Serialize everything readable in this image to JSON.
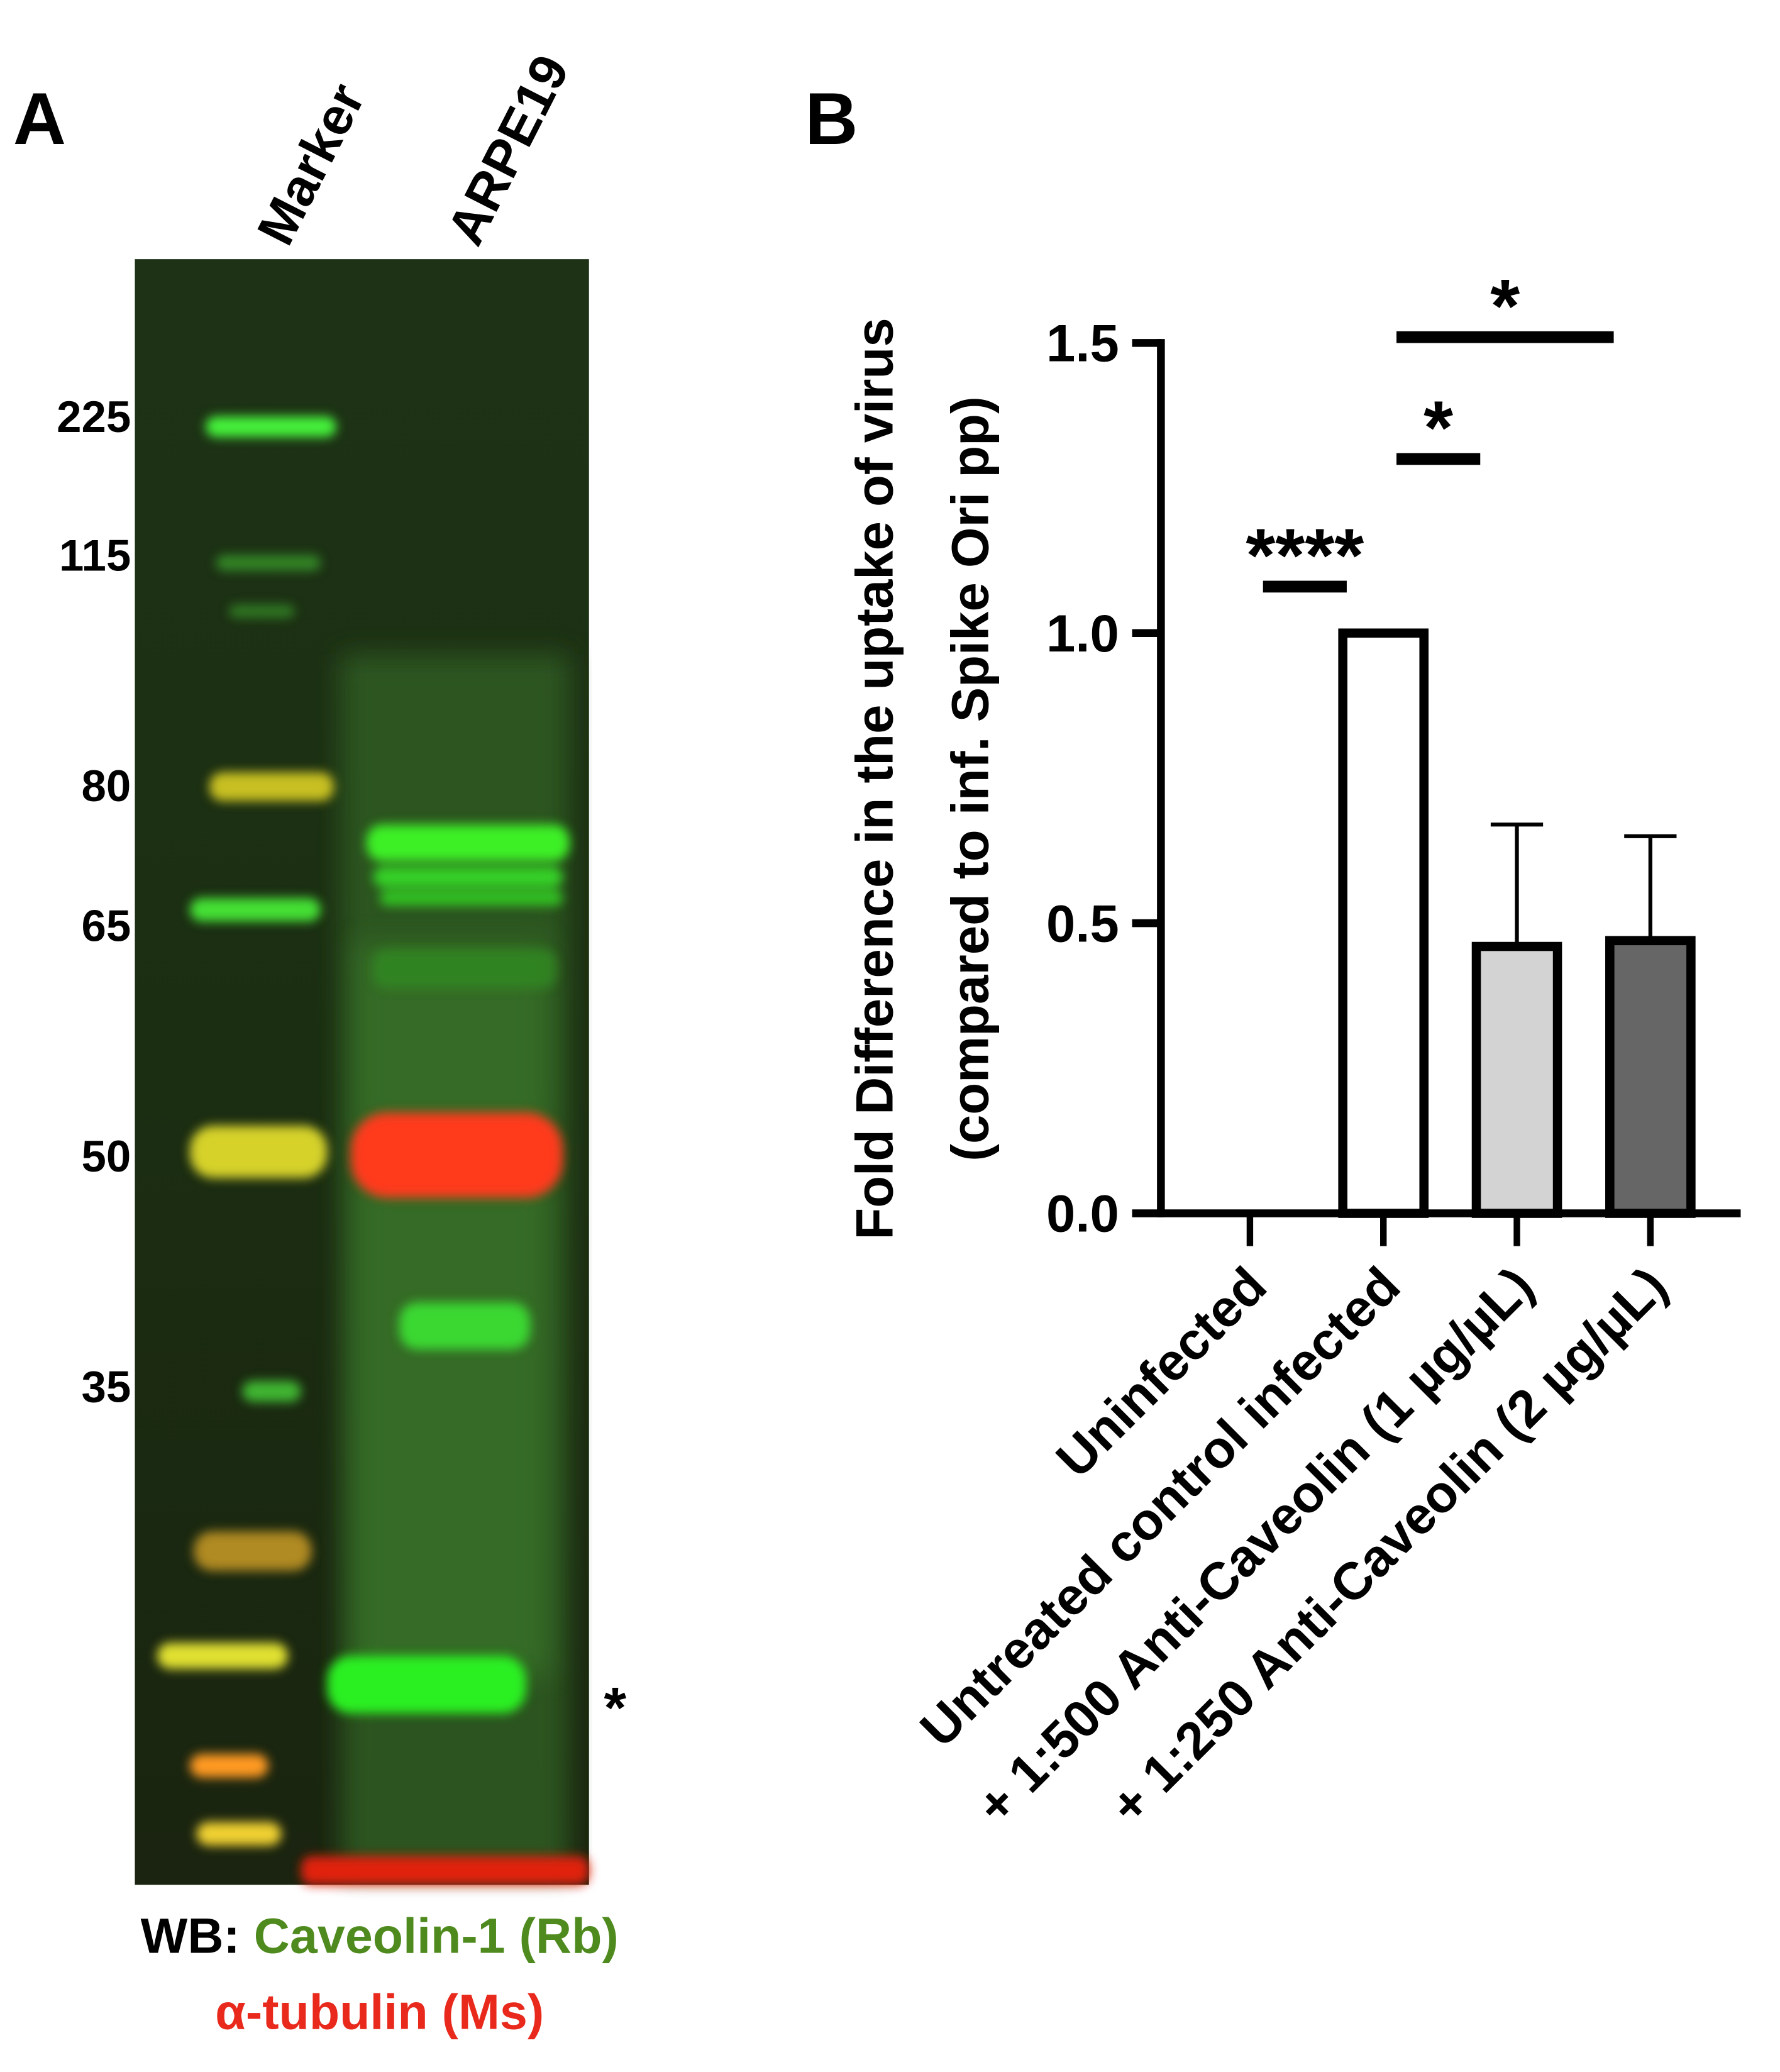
{
  "panel_a": {
    "label": "A",
    "lanes": [
      "Marker",
      "ARPE19"
    ],
    "markers": [
      "225",
      "115",
      "80",
      "65",
      "50",
      "35"
    ],
    "band_note": "*",
    "wb_prefix": "WB:",
    "wb_green": "Caveolin-1 (Rb)",
    "wb_red": "α-tubulin (Ms)"
  },
  "chart_data": {
    "type": "bar",
    "panel_label": "B",
    "y_label": [
      "Fold Difference in the uptake of virus",
      "(compared to inf. Spike Ori pp)"
    ],
    "categories": [
      "Uninfected",
      "Untreated control infected",
      "+ 1:500 Anti-Caveolin (1 µg/µL)",
      "+ 1:250 Anti-Caveolin (2 µg/µL)"
    ],
    "values": [
      0,
      1.0,
      0.46,
      0.47
    ],
    "errors": [
      0,
      0,
      0.21,
      0.18
    ],
    "colors": [
      "#ffffff",
      "#ffffff",
      "#d3d3d3",
      "#666666"
    ],
    "ylim": [
      0,
      1.5
    ],
    "yticks": [
      {
        "value": 0,
        "label": "0.0"
      },
      {
        "value": 0.5,
        "label": "0.5"
      },
      {
        "value": 1,
        "label": "1.0"
      },
      {
        "value": 1.5,
        "label": "1.5"
      }
    ],
    "significance": [
      {
        "label": "****",
        "from": 0,
        "to": 1,
        "y": 1.08
      },
      {
        "label": "*",
        "from": 1,
        "to": 2,
        "y": 1.3
      },
      {
        "label": "*",
        "from": 1,
        "to": 3,
        "y": 1.51
      }
    ]
  }
}
